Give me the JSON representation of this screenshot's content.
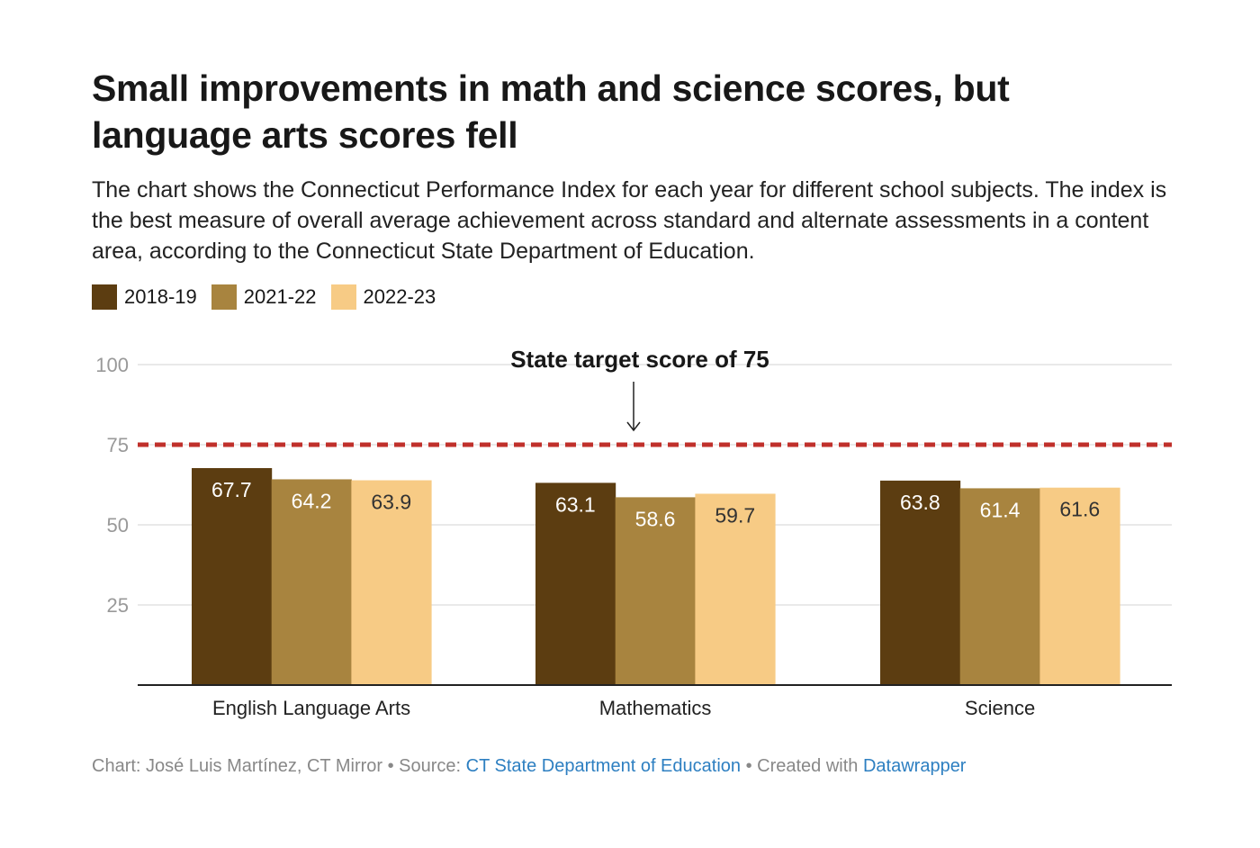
{
  "title": "Small improvements in math and science scores, but language arts scores fell",
  "description": "The chart shows the Connecticut Performance Index for each year for different school subjects. The index is the best measure of overall average achievement across standard and alternate assessments in a content area, according to the Connecticut State Department of Education.",
  "footer": {
    "chart_prefix": "Chart: José Luis Martínez, CT Mirror • Source: ",
    "source_link": "CT State Department of Education",
    "created_prefix": " • Created with ",
    "created_link": "Datawrapper"
  },
  "chart_data": {
    "type": "bar",
    "categories": [
      "English Language Arts",
      "Mathematics",
      "Science"
    ],
    "series": [
      {
        "name": "2018-19",
        "color": "#5c3d11",
        "values": [
          67.7,
          63.1,
          63.8
        ]
      },
      {
        "name": "2021-22",
        "color": "#a8843f",
        "values": [
          64.2,
          58.6,
          61.4
        ]
      },
      {
        "name": "2022-23",
        "color": "#f7cb85",
        "values": [
          63.9,
          59.7,
          61.6
        ]
      }
    ],
    "ylim": [
      0,
      100
    ],
    "yticks": [
      25,
      50,
      75,
      100
    ],
    "grid": true,
    "legend_position": "top-left",
    "reference_line": {
      "value": 75,
      "color": "#c0302b",
      "label": "State target score of 75"
    }
  }
}
